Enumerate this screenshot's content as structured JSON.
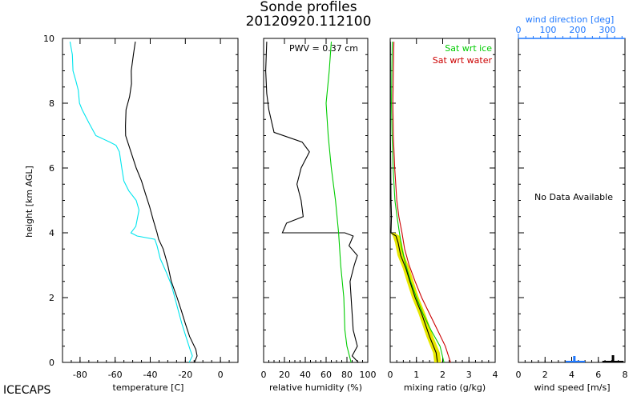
{
  "title": "Sonde profiles",
  "subtitle": "20120920.112100",
  "brand": "ICECAPS",
  "colors": {
    "temperature": "#000000",
    "dewpoint": "#00e5ee",
    "rh": "#000000",
    "sat_ice": "#00cc00",
    "sat_water": "#cc0000",
    "mixing": "#000000",
    "mixing_fill": "#e8e800",
    "wind_blue": "#1e78ff",
    "wind_black": "#000000"
  },
  "chart_data": [
    {
      "type": "line",
      "panel": "temperature",
      "xlabel": "temperature [C]",
      "ylabel": "height [km AGL]",
      "xlim": [
        -90,
        10
      ],
      "ylim": [
        0,
        10
      ],
      "xticks": [
        "-80",
        "-60",
        "-40",
        "-20",
        "0"
      ],
      "yticks": [
        "0",
        "2",
        "4",
        "6",
        "8",
        "10"
      ],
      "series": [
        {
          "key": "temperature",
          "color": "#000000",
          "points": [
            [
              -14.8,
              0
            ],
            [
              -13.3,
              0.2
            ],
            [
              -14,
              0.4
            ],
            [
              -17.6,
              0.8
            ],
            [
              -20,
              1.2
            ],
            [
              -22.3,
              1.6
            ],
            [
              -24.7,
              2
            ],
            [
              -28,
              2.5
            ],
            [
              -30,
              3
            ],
            [
              -32.6,
              3.5
            ],
            [
              -35.2,
              3.8
            ],
            [
              -36.1,
              4
            ],
            [
              -38.3,
              4.4
            ],
            [
              -40.3,
              4.8
            ],
            [
              -42.7,
              5.2
            ],
            [
              -45,
              5.6
            ],
            [
              -48,
              6
            ],
            [
              -51,
              6.5
            ],
            [
              -54,
              7
            ],
            [
              -54.1,
              7.3
            ],
            [
              -53.8,
              7.8
            ],
            [
              -51.8,
              8.2
            ],
            [
              -50.7,
              8.6
            ],
            [
              -50.8,
              9
            ],
            [
              -49.6,
              9.5
            ],
            [
              -48.5,
              9.9
            ]
          ]
        },
        {
          "key": "dewpoint",
          "color": "#00e5ee",
          "points": [
            [
              -17.8,
              0
            ],
            [
              -16,
              0.2
            ],
            [
              -17.3,
              0.4
            ],
            [
              -19.7,
              0.8
            ],
            [
              -22,
              1.2
            ],
            [
              -24,
              1.6
            ],
            [
              -26,
              2
            ],
            [
              -28,
              2.4
            ],
            [
              -31,
              2.8
            ],
            [
              -34.3,
              3.2
            ],
            [
              -36.1,
              3.6
            ],
            [
              -37.4,
              3.8
            ],
            [
              -47.5,
              3.9
            ],
            [
              -51,
              4
            ],
            [
              -48.2,
              4.2
            ],
            [
              -46.4,
              4.7
            ],
            [
              -48,
              5
            ],
            [
              -52.3,
              5.3
            ],
            [
              -55,
              5.6
            ],
            [
              -56.2,
              6
            ],
            [
              -57.6,
              6.5
            ],
            [
              -59.5,
              6.7
            ],
            [
              -63,
              6.8
            ],
            [
              -71,
              7
            ],
            [
              -75,
              7.4
            ],
            [
              -78.8,
              7.8
            ],
            [
              -80.3,
              8
            ],
            [
              -81,
              8.4
            ],
            [
              -82.4,
              8.7
            ],
            [
              -84,
              9
            ],
            [
              -84.4,
              9.5
            ],
            [
              -85.7,
              9.9
            ]
          ]
        }
      ]
    },
    {
      "type": "line",
      "panel": "relative_humidity",
      "xlabel": "relative humidity (%)",
      "xlim": [
        0,
        100
      ],
      "ylim": [
        0,
        10
      ],
      "xticks": [
        "0",
        "20",
        "40",
        "60",
        "80",
        "100"
      ],
      "annotation": "PWV = 0.37 cm",
      "series": [
        {
          "key": "rh",
          "color": "#000000",
          "points": [
            [
              91,
              0
            ],
            [
              85,
              0.2
            ],
            [
              90,
              0.5
            ],
            [
              86,
              1
            ],
            [
              85,
              1.5
            ],
            [
              84,
              2
            ],
            [
              83,
              2.5
            ],
            [
              87,
              3
            ],
            [
              90,
              3.3
            ],
            [
              82,
              3.6
            ],
            [
              86,
              3.9
            ],
            [
              78,
              4
            ],
            [
              18,
              4
            ],
            [
              22,
              4.3
            ],
            [
              38,
              4.5
            ],
            [
              36,
              5
            ],
            [
              32,
              5.5
            ],
            [
              36,
              6
            ],
            [
              44,
              6.5
            ],
            [
              37,
              6.8
            ],
            [
              10,
              7.1
            ],
            [
              5,
              7.8
            ],
            [
              3,
              8.3
            ],
            [
              2,
              9
            ],
            [
              3,
              9.9
            ]
          ]
        },
        {
          "key": "sat_ice",
          "color": "#00cc00",
          "points": [
            [
              84,
              0
            ],
            [
              80,
              0.5
            ],
            [
              78,
              1
            ],
            [
              77,
              2
            ],
            [
              74,
              3
            ],
            [
              72,
              4
            ],
            [
              69,
              5
            ],
            [
              65,
              6
            ],
            [
              62,
              7
            ],
            [
              60,
              8
            ],
            [
              63,
              9
            ],
            [
              65,
              9.9
            ]
          ]
        }
      ]
    },
    {
      "type": "line",
      "panel": "mixing_ratio",
      "xlabel": "mixing ratio (g/kg)",
      "xlim": [
        0,
        4
      ],
      "ylim": [
        0,
        10
      ],
      "xticks": [
        "0",
        "1",
        "2",
        "3",
        "4"
      ],
      "legend": [
        "Sat wrt ice",
        "Sat wrt water"
      ],
      "series": [
        {
          "key": "sat_water",
          "color": "#cc0000",
          "points": [
            [
              2.3,
              0
            ],
            [
              2.1,
              0.5
            ],
            [
              1.8,
              1
            ],
            [
              1.5,
              1.5
            ],
            [
              1.2,
              2
            ],
            [
              0.95,
              2.5
            ],
            [
              0.72,
              3
            ],
            [
              0.55,
              3.5
            ],
            [
              0.45,
              4
            ],
            [
              0.33,
              4.5
            ],
            [
              0.25,
              5
            ],
            [
              0.17,
              6
            ],
            [
              0.12,
              7
            ],
            [
              0.1,
              8
            ],
            [
              0.12,
              9
            ],
            [
              0.14,
              9.9
            ]
          ]
        },
        {
          "key": "sat_ice",
          "color": "#00cc00",
          "points": [
            [
              2.05,
              0
            ],
            [
              1.9,
              0.5
            ],
            [
              1.55,
              1
            ],
            [
              1.25,
              1.5
            ],
            [
              1.0,
              2
            ],
            [
              0.78,
              2.5
            ],
            [
              0.6,
              3
            ],
            [
              0.45,
              3.5
            ],
            [
              0.35,
              4
            ],
            [
              0.26,
              4.5
            ],
            [
              0.18,
              5
            ],
            [
              0.11,
              6
            ],
            [
              0.07,
              7
            ],
            [
              0.05,
              8
            ],
            [
              0.06,
              9
            ],
            [
              0.08,
              9.9
            ]
          ]
        },
        {
          "key": "mixing",
          "color": "#000000",
          "points": [
            [
              1.8,
              0
            ],
            [
              1.75,
              0.3
            ],
            [
              1.5,
              0.8
            ],
            [
              1.2,
              1.5
            ],
            [
              0.95,
              2
            ],
            [
              0.75,
              2.5
            ],
            [
              0.6,
              2.9
            ],
            [
              0.4,
              3.3
            ],
            [
              0.3,
              3.7
            ],
            [
              0.22,
              3.9
            ],
            [
              0.03,
              4
            ],
            [
              0.05,
              4.5
            ],
            [
              0.03,
              5
            ],
            [
              0.02,
              6
            ],
            [
              0.01,
              7
            ],
            [
              0.01,
              8
            ],
            [
              0.01,
              9
            ],
            [
              0.01,
              9.9
            ]
          ]
        }
      ]
    },
    {
      "type": "bar",
      "panel": "wind",
      "xlabel": "wind speed [m/s]",
      "top_axis_label": "wind direction [deg]",
      "xlim": [
        0,
        8
      ],
      "top_xlim": [
        0,
        360
      ],
      "xticks": [
        "0",
        "2",
        "4",
        "6",
        "8"
      ],
      "top_xticks": [
        "0",
        "100",
        "200",
        "300"
      ],
      "message": "No Data Available"
    }
  ]
}
